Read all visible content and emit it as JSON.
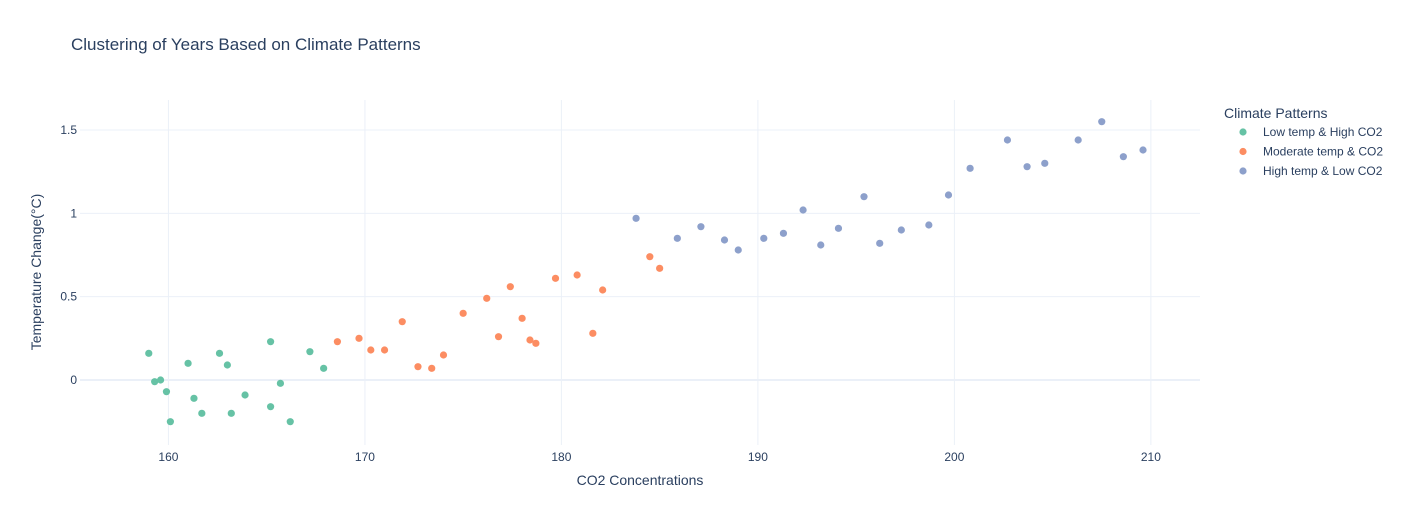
{
  "chart_data": {
    "type": "scatter",
    "title": "Clustering of Years Based on Climate Patterns",
    "xlabel": "CO2 Concentrations",
    "ylabel": "Temperature Change(°C)",
    "xlim": [
      155.5,
      212.5
    ],
    "ylim": [
      -0.39,
      1.68
    ],
    "xticks": [
      160,
      170,
      180,
      190,
      200,
      210
    ],
    "yticks": [
      0,
      0.5,
      1,
      1.5
    ],
    "ytick_labels": [
      "0",
      "0.5",
      "1",
      "1.5"
    ],
    "grid": true,
    "legend": {
      "title": "Climate Patterns",
      "position": "right"
    },
    "series": [
      {
        "name": "Low temp & High CO2",
        "color": "#66c2a5",
        "points": [
          [
            159.0,
            0.16
          ],
          [
            159.3,
            -0.01
          ],
          [
            159.6,
            0.0
          ],
          [
            159.9,
            -0.07
          ],
          [
            160.1,
            -0.25
          ],
          [
            161.0,
            0.1
          ],
          [
            161.3,
            -0.11
          ],
          [
            161.7,
            -0.2
          ],
          [
            162.6,
            0.16
          ],
          [
            163.0,
            0.09
          ],
          [
            163.2,
            -0.2
          ],
          [
            163.9,
            -0.09
          ],
          [
            165.2,
            0.23
          ],
          [
            165.2,
            -0.16
          ],
          [
            165.7,
            -0.02
          ],
          [
            166.2,
            -0.25
          ],
          [
            167.2,
            0.17
          ],
          [
            167.9,
            0.07
          ]
        ]
      },
      {
        "name": "Moderate temp & CO2",
        "color": "#fc8d62",
        "points": [
          [
            168.6,
            0.23
          ],
          [
            169.7,
            0.25
          ],
          [
            170.3,
            0.18
          ],
          [
            171.0,
            0.18
          ],
          [
            171.9,
            0.35
          ],
          [
            172.7,
            0.08
          ],
          [
            173.4,
            0.07
          ],
          [
            174.0,
            0.15
          ],
          [
            175.0,
            0.4
          ],
          [
            176.2,
            0.49
          ],
          [
            176.8,
            0.26
          ],
          [
            177.4,
            0.56
          ],
          [
            178.0,
            0.37
          ],
          [
            178.4,
            0.24
          ],
          [
            178.7,
            0.22
          ],
          [
            179.7,
            0.61
          ],
          [
            180.8,
            0.63
          ],
          [
            181.6,
            0.28
          ],
          [
            182.1,
            0.54
          ],
          [
            184.5,
            0.74
          ],
          [
            185.0,
            0.67
          ]
        ]
      },
      {
        "name": "High temp & Low CO2",
        "color": "#8da0cb",
        "points": [
          [
            183.8,
            0.97
          ],
          [
            185.9,
            0.85
          ],
          [
            187.1,
            0.92
          ],
          [
            188.3,
            0.84
          ],
          [
            189.0,
            0.78
          ],
          [
            190.3,
            0.85
          ],
          [
            191.3,
            0.88
          ],
          [
            192.3,
            1.02
          ],
          [
            193.2,
            0.81
          ],
          [
            194.1,
            0.91
          ],
          [
            195.4,
            1.1
          ],
          [
            196.2,
            0.82
          ],
          [
            197.3,
            0.9
          ],
          [
            198.7,
            0.93
          ],
          [
            199.7,
            1.11
          ],
          [
            200.8,
            1.27
          ],
          [
            202.7,
            1.44
          ],
          [
            203.7,
            1.28
          ],
          [
            204.6,
            1.3
          ],
          [
            206.3,
            1.44
          ],
          [
            207.5,
            1.55
          ],
          [
            208.6,
            1.34
          ],
          [
            209.6,
            1.38
          ]
        ]
      }
    ]
  }
}
